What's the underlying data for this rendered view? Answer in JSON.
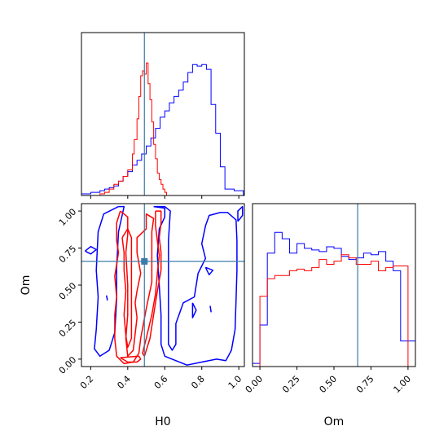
{
  "chart_data": {
    "type": "corner",
    "parameters": [
      "H0",
      "Om"
    ],
    "truth": {
      "H0": 0.49,
      "Om": 0.66
    },
    "colors": {
      "series_a": "#0000ff",
      "series_b": "#ff0000",
      "truth": "#3a7ca8"
    },
    "axes": {
      "H0": {
        "label": "H0",
        "lim": [
          0.15,
          1.03
        ],
        "ticks": [
          "0.2",
          "0.4",
          "0.6",
          "0.8",
          "1.0"
        ]
      },
      "Om": {
        "label": "Om",
        "lim": [
          -0.05,
          1.05
        ],
        "ticks": [
          "0.00",
          "0.25",
          "0.50",
          "0.75",
          "1.00"
        ]
      }
    },
    "hist_H0": {
      "ylim": [
        0,
        1.02
      ],
      "series": [
        {
          "color": "blue",
          "bins": [
            0.15,
            0.175,
            0.2,
            0.225,
            0.25,
            0.275,
            0.3,
            0.325,
            0.35,
            0.375,
            0.4,
            0.425,
            0.45,
            0.475,
            0.5,
            0.525,
            0.55,
            0.575,
            0.6,
            0.625,
            0.65,
            0.675,
            0.7,
            0.725,
            0.75,
            0.775,
            0.8,
            0.825,
            0.85,
            0.875,
            0.9,
            0.925,
            0.95,
            0.975,
            1.0,
            1.025
          ],
          "values": [
            0.01,
            0.01,
            0.02,
            0.02,
            0.03,
            0.04,
            0.05,
            0.06,
            0.09,
            0.12,
            0.15,
            0.19,
            0.22,
            0.26,
            0.31,
            0.36,
            0.42,
            0.49,
            0.53,
            0.58,
            0.62,
            0.66,
            0.71,
            0.77,
            0.82,
            0.81,
            0.82,
            0.79,
            0.57,
            0.39,
            0.18,
            0.04,
            0.04,
            0.03,
            0.03
          ]
        },
        {
          "color": "red",
          "bins": [
            0.25,
            0.275,
            0.3,
            0.325,
            0.35,
            0.375,
            0.4,
            0.425,
            0.435,
            0.45,
            0.46,
            0.47,
            0.48,
            0.49,
            0.5,
            0.51,
            0.52,
            0.53,
            0.54,
            0.55,
            0.56,
            0.57,
            0.58,
            0.59,
            0.6,
            0.61
          ],
          "values": [
            0.01,
            0.02,
            0.04,
            0.07,
            0.09,
            0.12,
            0.16,
            0.26,
            0.35,
            0.48,
            0.62,
            0.75,
            0.78,
            0.76,
            0.83,
            0.7,
            0.6,
            0.46,
            0.32,
            0.23,
            0.14,
            0.1,
            0.07,
            0.04,
            0.02
          ]
        }
      ]
    },
    "hist_Om": {
      "ylim": [
        0,
        1.02
      ],
      "series": [
        {
          "color": "blue",
          "bins": [
            -0.05,
            0.0,
            0.05,
            0.1,
            0.15,
            0.2,
            0.25,
            0.3,
            0.35,
            0.4,
            0.45,
            0.5,
            0.55,
            0.6,
            0.65,
            0.7,
            0.75,
            0.8,
            0.85,
            0.9,
            0.95,
            1.0,
            1.05
          ],
          "values": [
            0.02,
            0.26,
            0.71,
            0.84,
            0.8,
            0.71,
            0.77,
            0.74,
            0.73,
            0.72,
            0.75,
            0.74,
            0.69,
            0.67,
            0.68,
            0.71,
            0.7,
            0.72,
            0.66,
            0.6,
            0.16,
            0.16
          ]
        },
        {
          "color": "red",
          "bins": [
            0.0,
            0.05,
            0.1,
            0.15,
            0.2,
            0.25,
            0.3,
            0.35,
            0.4,
            0.45,
            0.5,
            0.55,
            0.6,
            0.65,
            0.7,
            0.75,
            0.8,
            0.85,
            0.9,
            0.95,
            1.0
          ],
          "values": [
            0.44,
            0.55,
            0.57,
            0.57,
            0.6,
            0.61,
            0.6,
            0.62,
            0.67,
            0.64,
            0.66,
            0.7,
            0.68,
            0.64,
            0.64,
            0.66,
            0.6,
            0.62,
            0.63,
            0.63
          ]
        }
      ]
    },
    "contours": {
      "series": [
        {
          "color": "blue",
          "paths": [
            [
              [
                0.54,
                1.03
              ],
              [
                0.6,
                1.02
              ],
              [
                0.6,
                0.96
              ],
              [
                0.57,
                0.88
              ],
              [
                0.56,
                0.7
              ],
              [
                0.57,
                0.5
              ],
              [
                0.58,
                0.3
              ],
              [
                0.58,
                0.1
              ],
              [
                0.6,
                0.02
              ],
              [
                0.72,
                -0.04
              ],
              [
                0.8,
                -0.02
              ],
              [
                0.88,
                0.0
              ],
              [
                0.93,
                -0.01
              ],
              [
                0.96,
                0.06
              ],
              [
                0.98,
                0.2
              ],
              [
                0.985,
                0.4
              ],
              [
                0.99,
                0.6
              ],
              [
                0.99,
                0.8
              ],
              [
                0.985,
                0.94
              ],
              [
                0.94,
                0.99
              ],
              [
                0.9,
                0.99
              ],
              [
                0.84,
                0.97
              ],
              [
                0.82,
                0.9
              ],
              [
                0.8,
                0.78
              ],
              [
                0.82,
                0.68
              ],
              [
                0.78,
                0.58
              ],
              [
                0.76,
                0.42
              ],
              [
                0.7,
                0.38
              ],
              [
                0.66,
                0.24
              ],
              [
                0.66,
                0.1
              ],
              [
                0.64,
                0.06
              ],
              [
                0.62,
                0.1
              ],
              [
                0.62,
                0.5
              ],
              [
                0.62,
                0.8
              ],
              [
                0.63,
                1.0
              ],
              [
                0.6,
                1.03
              ],
              [
                0.54,
                1.03
              ]
            ],
            [
              [
                0.35,
                1.03
              ],
              [
                0.27,
                0.98
              ],
              [
                0.24,
                0.86
              ],
              [
                0.23,
                0.6
              ],
              [
                0.24,
                0.42
              ],
              [
                0.23,
                0.2
              ],
              [
                0.22,
                0.07
              ],
              [
                0.25,
                0.02
              ],
              [
                0.3,
                0.06
              ],
              [
                0.33,
                0.18
              ],
              [
                0.34,
                0.4
              ],
              [
                0.34,
                0.62
              ],
              [
                0.35,
                0.86
              ],
              [
                0.38,
                1.03
              ],
              [
                0.35,
                1.03
              ]
            ],
            [
              [
                0.17,
                0.73
              ],
              [
                0.2,
                0.76
              ],
              [
                0.23,
                0.74
              ],
              [
                0.2,
                0.71
              ],
              [
                0.17,
                0.73
              ]
            ],
            [
              [
                0.995,
                0.93
              ],
              [
                1.02,
                0.97
              ],
              [
                1.02,
                1.03
              ],
              [
                0.995,
                1.0
              ],
              [
                0.995,
                0.93
              ]
            ],
            [
              [
                0.82,
                0.62
              ],
              [
                0.86,
                0.6
              ],
              [
                0.84,
                0.57
              ],
              [
                0.82,
                0.62
              ]
            ],
            [
              [
                0.75,
                0.38
              ],
              [
                0.77,
                0.33
              ],
              [
                0.75,
                0.28
              ],
              [
                0.75,
                0.38
              ]
            ],
            [
              [
                0.845,
                0.36
              ],
              [
                0.85,
                0.32
              ],
              [
                0.845,
                0.36
              ]
            ],
            [
              [
                0.285,
                0.43
              ],
              [
                0.29,
                0.4
              ],
              [
                0.285,
                0.43
              ]
            ]
          ]
        },
        {
          "color": "red",
          "paths": [
            [
              [
                0.36,
                1.0
              ],
              [
                0.34,
                0.92
              ],
              [
                0.34,
                0.8
              ],
              [
                0.35,
                0.72
              ],
              [
                0.33,
                0.56
              ],
              [
                0.34,
                0.42
              ],
              [
                0.33,
                0.3
              ],
              [
                0.33,
                0.14
              ],
              [
                0.34,
                0.02
              ],
              [
                0.38,
                -0.03
              ],
              [
                0.43,
                -0.02
              ],
              [
                0.46,
                0.04
              ],
              [
                0.47,
                0.14
              ],
              [
                0.5,
                0.34
              ],
              [
                0.53,
                0.52
              ],
              [
                0.53,
                0.72
              ],
              [
                0.53,
                0.86
              ],
              [
                0.54,
                0.95
              ],
              [
                0.5,
                0.98
              ],
              [
                0.5,
                0.88
              ],
              [
                0.45,
                0.82
              ],
              [
                0.45,
                0.72
              ],
              [
                0.47,
                0.58
              ],
              [
                0.45,
                0.46
              ],
              [
                0.44,
                0.38
              ],
              [
                0.45,
                0.28
              ],
              [
                0.43,
                0.06
              ],
              [
                0.4,
                0.02
              ],
              [
                0.39,
                0.14
              ],
              [
                0.4,
                0.3
              ],
              [
                0.4,
                0.5
              ],
              [
                0.39,
                0.72
              ],
              [
                0.4,
                0.84
              ],
              [
                0.4,
                0.96
              ],
              [
                0.36,
                1.0
              ]
            ],
            [
              [
                0.37,
                0.82
              ],
              [
                0.38,
                0.72
              ],
              [
                0.38,
                0.6
              ],
              [
                0.39,
                0.46
              ],
              [
                0.38,
                0.3
              ],
              [
                0.39,
                0.16
              ],
              [
                0.4,
                0.08
              ],
              [
                0.42,
                0.14
              ],
              [
                0.42,
                0.32
              ],
              [
                0.42,
                0.5
              ],
              [
                0.42,
                0.68
              ],
              [
                0.42,
                0.82
              ],
              [
                0.4,
                0.88
              ],
              [
                0.37,
                0.82
              ]
            ],
            [
              [
                0.55,
                1.0
              ],
              [
                0.55,
                0.9
              ],
              [
                0.56,
                0.8
              ],
              [
                0.57,
                0.7
              ],
              [
                0.56,
                0.58
              ],
              [
                0.55,
                0.44
              ],
              [
                0.53,
                0.3
              ],
              [
                0.5,
                0.14
              ],
              [
                0.48,
                0.04
              ],
              [
                0.49,
                0.02
              ],
              [
                0.52,
                0.14
              ],
              [
                0.54,
                0.3
              ],
              [
                0.56,
                0.46
              ],
              [
                0.58,
                0.6
              ],
              [
                0.58,
                0.72
              ],
              [
                0.57,
                0.82
              ],
              [
                0.58,
                0.92
              ],
              [
                0.58,
                1.0
              ],
              [
                0.55,
                1.0
              ]
            ],
            [
              [
                0.36,
                0.01
              ],
              [
                0.46,
                0.02
              ],
              [
                0.47,
                0.0
              ],
              [
                0.45,
                -0.02
              ],
              [
                0.4,
                -0.02
              ],
              [
                0.36,
                0.01
              ]
            ]
          ]
        }
      ]
    }
  }
}
